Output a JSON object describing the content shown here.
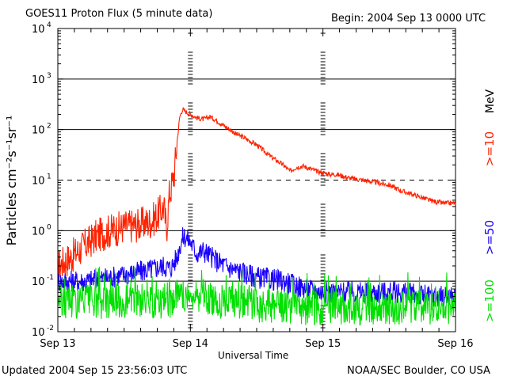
{
  "chart_data": {
    "type": "line",
    "title": "GOES11 Proton Flux (5 minute data)",
    "begin_label": "Begin: 2004 Sep 13 0000 UTC",
    "xlabel": "Universal Time",
    "ylabel": "Particles cm⁻²s⁻¹sr⁻¹",
    "yscale": "log",
    "ylim": [
      0.01,
      10000
    ],
    "xlim_days": [
      0,
      3
    ],
    "x_ticks": [
      {
        "day": 0,
        "label": "Sep 13"
      },
      {
        "day": 1,
        "label": "Sep 14"
      },
      {
        "day": 2,
        "label": "Sep 15"
      },
      {
        "day": 3,
        "label": "Sep 16"
      }
    ],
    "y_ticks": [
      {
        "value": 0.01,
        "exp": "-2"
      },
      {
        "value": 0.1,
        "exp": "-1"
      },
      {
        "value": 1,
        "exp": "0"
      },
      {
        "value": 10,
        "exp": "1"
      },
      {
        "value": 100,
        "exp": "2"
      },
      {
        "value": 1000,
        "exp": "3"
      },
      {
        "value": 10000,
        "exp": "4"
      }
    ],
    "solid_gridlines": [
      0.1,
      1,
      100,
      1000
    ],
    "dashed_gridlines": [
      10
    ],
    "day_markers": [
      1,
      2
    ],
    "units_label": "MeV",
    "series": [
      {
        "name": ">=10",
        "color": "#ff2200",
        "x": [
          0.0,
          0.1,
          0.2,
          0.3,
          0.4,
          0.5,
          0.6,
          0.7,
          0.75,
          0.8,
          0.82,
          0.84,
          0.86,
          0.88,
          0.9,
          0.92,
          0.94,
          0.96,
          1.0,
          1.05,
          1.1,
          1.15,
          1.2,
          1.25,
          1.3,
          1.35,
          1.4,
          1.5,
          1.6,
          1.7,
          1.75,
          1.8,
          1.85,
          1.9,
          1.95,
          2.0,
          2.05,
          2.1,
          2.15,
          2.2,
          2.3,
          2.4,
          2.5,
          2.6,
          2.7,
          2.8,
          2.9,
          3.0
        ],
        "values": [
          0.2,
          0.3,
          0.5,
          0.8,
          1.0,
          1.2,
          1.3,
          1.5,
          2.0,
          3.0,
          1.0,
          5.0,
          8.0,
          15,
          60,
          180,
          250,
          230,
          200,
          170,
          160,
          180,
          150,
          120,
          100,
          80,
          70,
          50,
          30,
          20,
          15,
          18,
          19,
          17,
          15,
          14,
          13,
          13,
          12,
          11,
          10,
          9,
          8,
          6,
          5,
          4,
          3.5,
          3.5
        ]
      },
      {
        "name": ">=50",
        "color": "#1a00ff",
        "x": [
          0.0,
          0.2,
          0.4,
          0.6,
          0.8,
          0.85,
          0.9,
          0.92,
          0.95,
          1.0,
          1.05,
          1.1,
          1.2,
          1.3,
          1.5,
          1.7,
          1.8,
          2.0,
          2.2,
          2.4,
          2.6,
          2.8,
          3.0
        ],
        "values": [
          0.1,
          0.1,
          0.12,
          0.15,
          0.2,
          0.18,
          0.3,
          0.5,
          0.8,
          0.6,
          0.35,
          0.4,
          0.25,
          0.18,
          0.12,
          0.1,
          0.08,
          0.06,
          0.06,
          0.06,
          0.06,
          0.05,
          0.05
        ]
      },
      {
        "name": ">=100",
        "color": "#00e000",
        "x": [
          0.0,
          0.2,
          0.4,
          0.6,
          0.8,
          1.0,
          1.2,
          1.4,
          1.6,
          1.8,
          2.0,
          2.2,
          2.4,
          2.6,
          2.8,
          3.0
        ],
        "values": [
          0.04,
          0.04,
          0.04,
          0.04,
          0.04,
          0.05,
          0.04,
          0.04,
          0.03,
          0.03,
          0.03,
          0.03,
          0.03,
          0.03,
          0.03,
          0.03
        ]
      }
    ]
  },
  "footer": {
    "updated": "Updated 2004 Sep 15 23:56:03 UTC",
    "source": "NOAA/SEC Boulder, CO USA"
  }
}
